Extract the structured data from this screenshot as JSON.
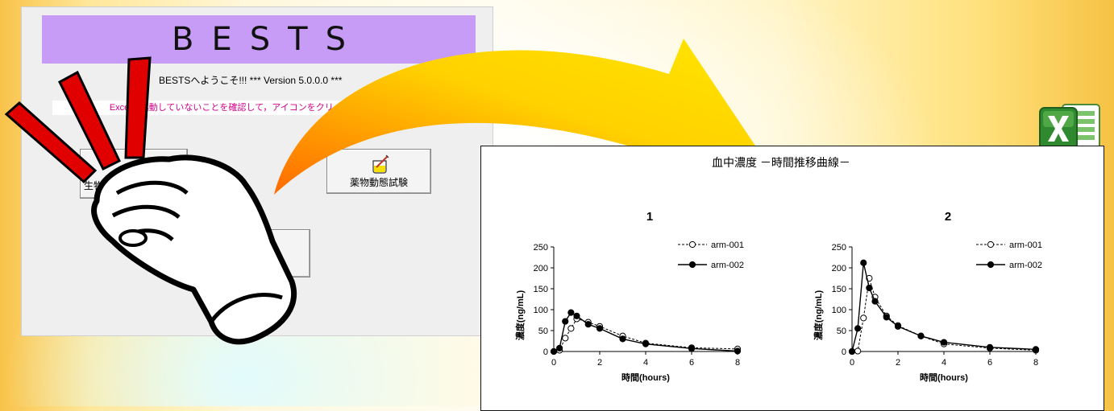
{
  "app": {
    "banner_title": "BESTS",
    "welcome": "BESTSへようこそ!!!  *** Version 5.0.0.0 ***",
    "notice": "Excelが起動していないことを確認して，アイコンをクリックしてください.",
    "buttons": {
      "bio_label": "生物学的",
      "pk_label": "薬物動態試験",
      "third_label": ""
    }
  },
  "icons": [
    "hand-click-icon",
    "excel-icon",
    "flask-syringe-icon",
    "curved-arrow-icon"
  ],
  "colors": {
    "banner": "#c79cf7",
    "notice_text": "#d3008a",
    "arrow_start": "#ff6a00",
    "arrow_end": "#ffd800"
  },
  "chart_title": "血中濃度 －時間推移曲線－",
  "chart_data": [
    {
      "type": "line",
      "title": "1",
      "xlabel": "時間(hours)",
      "ylabel": "濃度(ng/mL)",
      "xlim": [
        0,
        8
      ],
      "ylim": [
        0,
        250
      ],
      "xticks": [
        0,
        2,
        4,
        6,
        8
      ],
      "yticks": [
        0,
        50,
        100,
        150,
        200,
        250
      ],
      "legend_position": "top-right",
      "series": [
        {
          "name": "arm-001",
          "style": "dashed-open",
          "x": [
            0,
            0.25,
            0.5,
            0.75,
            1,
            1.5,
            2,
            3,
            4,
            6,
            8
          ],
          "y": [
            0,
            3,
            32,
            55,
            78,
            70,
            60,
            37,
            20,
            9,
            6
          ]
        },
        {
          "name": "arm-002",
          "style": "solid-filled",
          "x": [
            0,
            0.25,
            0.5,
            0.75,
            1,
            1.5,
            2,
            3,
            4,
            6,
            8
          ],
          "y": [
            0,
            8,
            72,
            93,
            85,
            65,
            55,
            30,
            18,
            7,
            1
          ]
        }
      ]
    },
    {
      "type": "line",
      "title": "2",
      "xlabel": "時間(hours)",
      "ylabel": "濃度(ng/mL)",
      "xlim": [
        0,
        8
      ],
      "ylim": [
        0,
        250
      ],
      "xticks": [
        0,
        2,
        4,
        6,
        8
      ],
      "yticks": [
        0,
        50,
        100,
        150,
        200,
        250
      ],
      "legend_position": "top-right",
      "series": [
        {
          "name": "arm-001",
          "style": "dashed-open",
          "x": [
            0,
            0.25,
            0.5,
            0.75,
            1,
            1.5,
            2,
            3,
            4,
            6,
            8
          ],
          "y": [
            0,
            1,
            80,
            175,
            130,
            85,
            62,
            37,
            18,
            8,
            3
          ]
        },
        {
          "name": "arm-002",
          "style": "solid-filled",
          "x": [
            0,
            0.25,
            0.5,
            0.75,
            1,
            1.5,
            2,
            3,
            4,
            6,
            8
          ],
          "y": [
            0,
            55,
            212,
            152,
            120,
            82,
            60,
            37,
            22,
            10,
            5
          ]
        }
      ]
    }
  ]
}
